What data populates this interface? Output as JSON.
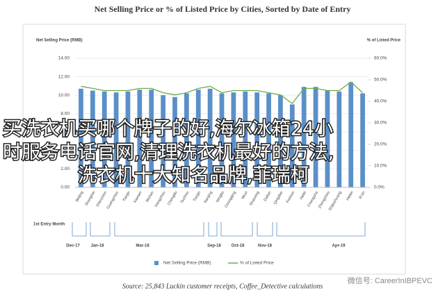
{
  "chart_data": {
    "type": "bar_line",
    "title": "Net Selling Price or % of Listed Price by Cities, Sorted by Date of Entry",
    "y_label": "Net Selling Price (RMB)",
    "y2_label": "% of Listed Price",
    "categories": [
      "Beijing",
      "Shanghai",
      "Shenzhen",
      "Guangzhou",
      "Tianjin",
      "Xiamen",
      "Wuhan",
      "Hangzhou",
      "Chengdu",
      "Suzhou",
      "Tianjin",
      "Nanjing",
      "Ningbo",
      "Chongqing",
      "Wuxi",
      "Shaoxing",
      "Dalian",
      "Qingdao",
      "Foshan",
      "Hefei",
      "Changsha",
      "Zhengzhou",
      "Shijiazhuang",
      "Hebei",
      "Xi'an"
    ],
    "series": [
      {
        "name": "Net Selling Price (RMB)",
        "type": "bar",
        "color": "#5b8fc9",
        "values": [
          10.7,
          10.5,
          10.4,
          10.3,
          10.4,
          10.6,
          10.6,
          10.0,
          9.8,
          10.2,
          10.6,
          10.7,
          10.2,
          10.3,
          10.4,
          10.3,
          10.2,
          10.0,
          9.0,
          10.9,
          10.9,
          10.5,
          10.4,
          11.4,
          10.2
        ]
      },
      {
        "name": "% of Listed Price",
        "type": "line",
        "axis": "y2",
        "color": "#6aaa4a",
        "values": [
          47,
          46,
          45,
          45,
          45,
          46,
          46,
          44,
          43,
          44,
          46,
          47,
          44,
          45,
          45,
          45,
          44,
          43,
          39,
          46,
          46,
          45,
          45,
          49,
          44
        ]
      }
    ],
    "ylim": [
      0,
      14
    ],
    "yticks": [
      {
        "value": 0,
        "label": "0.00"
      },
      {
        "value": 2,
        "label": "2.00"
      },
      {
        "value": 4,
        "label": "4.00"
      },
      {
        "value": 6,
        "label": "6.00"
      },
      {
        "value": 8,
        "label": "8.00"
      },
      {
        "value": 10,
        "label": "10.00"
      },
      {
        "value": 12,
        "label": "12.00"
      },
      {
        "value": 14,
        "label": "14.00"
      }
    ],
    "y2lim": [
      0,
      60
    ],
    "y2ticks": [
      {
        "value": 0,
        "label": "0.0%"
      },
      {
        "value": 10,
        "label": "10.0%"
      },
      {
        "value": 20,
        "label": "20.0%"
      },
      {
        "value": 30,
        "label": "30.0%"
      },
      {
        "value": 40,
        "label": "40.0%"
      },
      {
        "value": 50,
        "label": "50.0%"
      },
      {
        "value": 60,
        "label": "60.0%"
      }
    ],
    "grid": true,
    "timeline": {
      "label": "1st Entry Month",
      "marks": [
        "Dec-17",
        "Jan-18",
        "Mar-18",
        "Sep-18",
        "Oct-18",
        "Nov-18",
        "Apr-19"
      ]
    },
    "source": "Source: 25,843 Luckin customer receipts, Coffee_Detective calculations"
  },
  "overlay": {
    "lines": [
      "买洗衣机买哪个牌子的好,海尔冰箱24小",
      "时服务电话官网,清理洗衣机最好的方法,",
      "洗衣机十大知名品牌,菲瑞柯"
    ]
  },
  "watermark": "微信号: CareerInIBPEVC"
}
